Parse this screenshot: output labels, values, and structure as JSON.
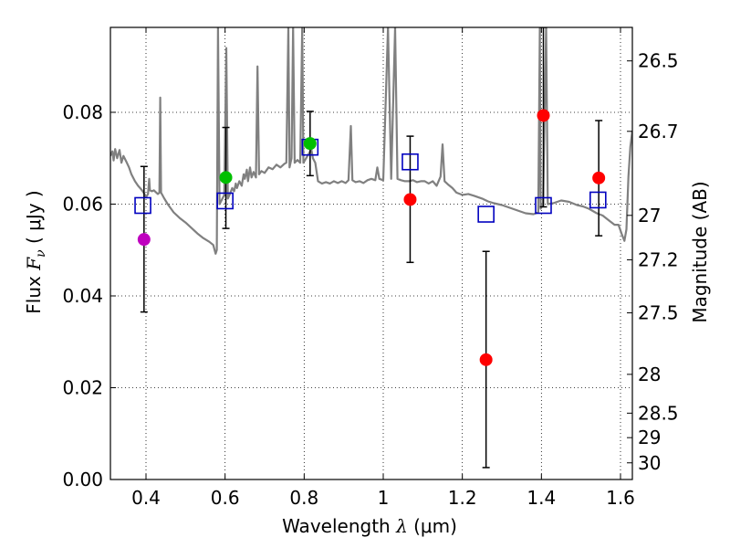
{
  "chart_data": {
    "type": "scatter",
    "xlabel_prefix": "Wavelength",
    "xlabel_symbol": "λ",
    "xlabel_unit": "(μm)",
    "ylabel_prefix": "Flux",
    "ylabel_symbol": "F",
    "ylabel_subscript": "ν",
    "ylabel_unit": "( μJy )",
    "y2label": "Magnitude (AB)",
    "xlim": [
      0.31,
      1.63
    ],
    "ylim": [
      0.0,
      0.0985
    ],
    "grid": true,
    "x_ticks": [
      {
        "value": 0.4,
        "label": "0.4"
      },
      {
        "value": 0.6,
        "label": "0.6"
      },
      {
        "value": 0.8,
        "label": "0.8"
      },
      {
        "value": 1.0,
        "label": "1"
      },
      {
        "value": 1.2,
        "label": "1.2"
      },
      {
        "value": 1.4,
        "label": "1.4"
      },
      {
        "value": 1.6,
        "label": "1.6"
      }
    ],
    "y_ticks": [
      {
        "value": 0.0,
        "label": "0.00"
      },
      {
        "value": 0.02,
        "label": "0.02"
      },
      {
        "value": 0.04,
        "label": "0.04"
      },
      {
        "value": 0.06,
        "label": "0.06"
      },
      {
        "value": 0.08,
        "label": "0.08"
      }
    ],
    "y2_ticks": [
      {
        "value": 26.5,
        "label": "26.5"
      },
      {
        "value": 26.7,
        "label": "26.7"
      },
      {
        "value": 27.0,
        "label": "27"
      },
      {
        "value": 27.2,
        "label": "27.2"
      },
      {
        "value": 27.5,
        "label": "27.5"
      },
      {
        "value": 28.0,
        "label": "28"
      },
      {
        "value": 28.5,
        "label": "28.5"
      },
      {
        "value": 29.0,
        "label": "29"
      },
      {
        "value": 30.0,
        "label": "30"
      }
    ],
    "observed_points": [
      {
        "x": 0.395,
        "y": 0.0523,
        "yerr_low": 0.0365,
        "yerr_high": 0.0682,
        "color": "#bf00bf"
      },
      {
        "x": 0.602,
        "y": 0.0658,
        "yerr_low": 0.0547,
        "yerr_high": 0.0767,
        "color": "#00bf00"
      },
      {
        "x": 0.815,
        "y": 0.0732,
        "yerr_low": 0.0662,
        "yerr_high": 0.0802,
        "color": "#00bf00"
      },
      {
        "x": 1.068,
        "y": 0.061,
        "yerr_low": 0.0473,
        "yerr_high": 0.0748,
        "color": "#ff0000"
      },
      {
        "x": 1.26,
        "y": 0.0261,
        "yerr_low": 0.0026,
        "yerr_high": 0.0497,
        "color": "#ff0000"
      },
      {
        "x": 1.405,
        "y": 0.0793,
        "yerr_low": 0.0594,
        "yerr_high": 0.0985,
        "color": "#ff0000"
      },
      {
        "x": 1.545,
        "y": 0.0657,
        "yerr_low": 0.0531,
        "yerr_high": 0.0782,
        "color": "#ff0000"
      }
    ],
    "model_points": [
      {
        "x": 0.392,
        "y": 0.0597
      },
      {
        "x": 0.6,
        "y": 0.0607
      },
      {
        "x": 0.815,
        "y": 0.0724
      },
      {
        "x": 1.068,
        "y": 0.0692
      },
      {
        "x": 1.26,
        "y": 0.0578
      },
      {
        "x": 1.405,
        "y": 0.0597
      },
      {
        "x": 1.543,
        "y": 0.0609
      }
    ],
    "model_color": "#0000bf",
    "spectrum_color": "#808080",
    "spectrum": [
      [
        0.31,
        0.0705
      ],
      [
        0.315,
        0.0715
      ],
      [
        0.318,
        0.0695
      ],
      [
        0.322,
        0.072
      ],
      [
        0.327,
        0.07
      ],
      [
        0.333,
        0.0718
      ],
      [
        0.338,
        0.069
      ],
      [
        0.343,
        0.0705
      ],
      [
        0.35,
        0.0693
      ],
      [
        0.357,
        0.068
      ],
      [
        0.363,
        0.0665
      ],
      [
        0.372,
        0.065
      ],
      [
        0.38,
        0.064
      ],
      [
        0.39,
        0.063
      ],
      [
        0.396,
        0.0622
      ],
      [
        0.4,
        0.0615
      ],
      [
        0.405,
        0.0622
      ],
      [
        0.408,
        0.0655
      ],
      [
        0.41,
        0.063
      ],
      [
        0.415,
        0.0628
      ],
      [
        0.42,
        0.063
      ],
      [
        0.425,
        0.0626
      ],
      [
        0.43,
        0.0622
      ],
      [
        0.434,
        0.0625
      ],
      [
        0.436,
        0.0832
      ],
      [
        0.438,
        0.0625
      ],
      [
        0.445,
        0.0614
      ],
      [
        0.455,
        0.06
      ],
      [
        0.47,
        0.0582
      ],
      [
        0.485,
        0.057
      ],
      [
        0.5,
        0.056
      ],
      [
        0.515,
        0.0548
      ],
      [
        0.53,
        0.0536
      ],
      [
        0.545,
        0.0526
      ],
      [
        0.56,
        0.0518
      ],
      [
        0.57,
        0.0511
      ],
      [
        0.576,
        0.0492
      ],
      [
        0.579,
        0.05
      ],
      [
        0.582,
        0.0985
      ],
      [
        0.586,
        0.06
      ],
      [
        0.592,
        0.061
      ],
      [
        0.598,
        0.062
      ],
      [
        0.603,
        0.094
      ],
      [
        0.607,
        0.0612
      ],
      [
        0.612,
        0.0622
      ],
      [
        0.618,
        0.0635
      ],
      [
        0.623,
        0.0628
      ],
      [
        0.627,
        0.0645
      ],
      [
        0.63,
        0.0635
      ],
      [
        0.636,
        0.065
      ],
      [
        0.642,
        0.064
      ],
      [
        0.647,
        0.0665
      ],
      [
        0.65,
        0.0655
      ],
      [
        0.655,
        0.0675
      ],
      [
        0.658,
        0.065
      ],
      [
        0.663,
        0.068
      ],
      [
        0.667,
        0.0658
      ],
      [
        0.672,
        0.067
      ],
      [
        0.678,
        0.0658
      ],
      [
        0.682,
        0.09
      ],
      [
        0.686,
        0.0665
      ],
      [
        0.692,
        0.0672
      ],
      [
        0.7,
        0.0668
      ],
      [
        0.71,
        0.068
      ],
      [
        0.72,
        0.0676
      ],
      [
        0.73,
        0.0686
      ],
      [
        0.74,
        0.068
      ],
      [
        0.75,
        0.0688
      ],
      [
        0.755,
        0.069
      ],
      [
        0.76,
        0.0985
      ],
      [
        0.763,
        0.068
      ],
      [
        0.768,
        0.07
      ],
      [
        0.772,
        0.0985
      ],
      [
        0.776,
        0.069
      ],
      [
        0.783,
        0.0696
      ],
      [
        0.79,
        0.069
      ],
      [
        0.795,
        0.0985
      ],
      [
        0.798,
        0.069
      ],
      [
        0.805,
        0.07
      ],
      [
        0.812,
        0.071
      ],
      [
        0.818,
        0.072
      ],
      [
        0.822,
        0.07
      ],
      [
        0.828,
        0.069
      ],
      [
        0.835,
        0.065
      ],
      [
        0.845,
        0.0645
      ],
      [
        0.855,
        0.0648
      ],
      [
        0.865,
        0.0645
      ],
      [
        0.875,
        0.065
      ],
      [
        0.885,
        0.0646
      ],
      [
        0.895,
        0.065
      ],
      [
        0.905,
        0.0646
      ],
      [
        0.912,
        0.0652
      ],
      [
        0.918,
        0.077
      ],
      [
        0.922,
        0.0652
      ],
      [
        0.93,
        0.0648
      ],
      [
        0.94,
        0.065
      ],
      [
        0.95,
        0.0646
      ],
      [
        0.96,
        0.0652
      ],
      [
        0.97,
        0.0655
      ],
      [
        0.98,
        0.0652
      ],
      [
        0.985,
        0.068
      ],
      [
        0.99,
        0.0655
      ],
      [
        1.0,
        0.0652
      ],
      [
        1.012,
        0.0985
      ],
      [
        1.02,
        0.0655
      ],
      [
        1.03,
        0.0985
      ],
      [
        1.036,
        0.0655
      ],
      [
        1.045,
        0.0652
      ],
      [
        1.055,
        0.065
      ],
      [
        1.065,
        0.065
      ],
      [
        1.075,
        0.0652
      ],
      [
        1.085,
        0.0648
      ],
      [
        1.095,
        0.065
      ],
      [
        1.105,
        0.065
      ],
      [
        1.115,
        0.0645
      ],
      [
        1.125,
        0.065
      ],
      [
        1.135,
        0.064
      ],
      [
        1.145,
        0.066
      ],
      [
        1.15,
        0.073
      ],
      [
        1.155,
        0.065
      ],
      [
        1.165,
        0.0642
      ],
      [
        1.175,
        0.0635
      ],
      [
        1.185,
        0.0625
      ],
      [
        1.2,
        0.062
      ],
      [
        1.215,
        0.0622
      ],
      [
        1.23,
        0.0618
      ],
      [
        1.24,
        0.0615
      ],
      [
        1.25,
        0.0612
      ],
      [
        1.265,
        0.0606
      ],
      [
        1.28,
        0.0602
      ],
      [
        1.3,
        0.0598
      ],
      [
        1.32,
        0.0592
      ],
      [
        1.34,
        0.0586
      ],
      [
        1.36,
        0.058
      ],
      [
        1.38,
        0.0578
      ],
      [
        1.392,
        0.0582
      ],
      [
        1.396,
        0.0985
      ],
      [
        1.398,
        0.059
      ],
      [
        1.404,
        0.06
      ],
      [
        1.412,
        0.0985
      ],
      [
        1.416,
        0.06
      ],
      [
        1.43,
        0.0602
      ],
      [
        1.45,
        0.0608
      ],
      [
        1.47,
        0.0605
      ],
      [
        1.49,
        0.0598
      ],
      [
        1.505,
        0.0595
      ],
      [
        1.52,
        0.059
      ],
      [
        1.54,
        0.058
      ],
      [
        1.555,
        0.0575
      ],
      [
        1.57,
        0.0565
      ],
      [
        1.585,
        0.0555
      ],
      [
        1.595,
        0.0555
      ],
      [
        1.603,
        0.0535
      ],
      [
        1.61,
        0.052
      ],
      [
        1.615,
        0.0545
      ],
      [
        1.62,
        0.066
      ],
      [
        1.625,
        0.0725
      ],
      [
        1.63,
        0.076
      ]
    ]
  }
}
